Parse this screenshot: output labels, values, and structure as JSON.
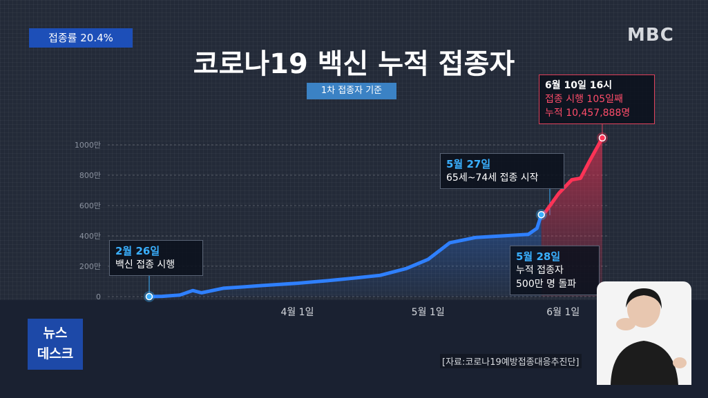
{
  "badge": {
    "label": "접종률 20.4%"
  },
  "broadcaster": {
    "logo_text": "MBC"
  },
  "program": {
    "line1": "뉴스",
    "line2": "데스크"
  },
  "source_text": "[자료:코로나19예방접종대응추진단]",
  "colors": {
    "blue_line": "#2f80ff",
    "red_line": "#ff3356",
    "badge_bg": "#1d4fb8"
  },
  "chart_data": {
    "type": "line",
    "title": "코로나19 백신 누적 접종자",
    "subtitle": "1차 접종자 기준",
    "ylabel": "",
    "xlabel": "",
    "y_unit": "만",
    "ylim": [
      0,
      1000
    ],
    "y_ticks": [
      {
        "value": 0,
        "label": "0"
      },
      {
        "value": 200,
        "label": "200만"
      },
      {
        "value": 400,
        "label": "400만"
      },
      {
        "value": 600,
        "label": "600만"
      },
      {
        "value": 800,
        "label": "800만"
      },
      {
        "value": 1000,
        "label": "1000만"
      }
    ],
    "grid": true,
    "x_ticks": [
      {
        "date": "2021-04-01",
        "label": "4월 1일"
      },
      {
        "date": "2021-05-01",
        "label": "5월 1일"
      },
      {
        "date": "2021-06-01",
        "label": "6월 1일"
      }
    ],
    "series": [
      {
        "color": "#2f80ff",
        "points": [
          [
            "2021-02-26",
            0
          ],
          [
            "2021-03-01",
            2
          ],
          [
            "2021-03-05",
            10
          ],
          [
            "2021-03-08",
            40
          ],
          [
            "2021-03-10",
            25
          ],
          [
            "2021-03-15",
            55
          ],
          [
            "2021-03-20",
            65
          ],
          [
            "2021-03-25",
            75
          ],
          [
            "2021-04-01",
            88
          ],
          [
            "2021-04-08",
            105
          ],
          [
            "2021-04-15",
            125
          ],
          [
            "2021-04-20",
            140
          ],
          [
            "2021-04-26",
            185
          ],
          [
            "2021-05-01",
            245
          ],
          [
            "2021-05-06",
            355
          ],
          [
            "2021-05-12",
            390
          ],
          [
            "2021-05-18",
            400
          ],
          [
            "2021-05-24",
            410
          ],
          [
            "2021-05-26",
            450
          ],
          [
            "2021-05-27",
            540
          ]
        ]
      },
      {
        "color": "#ff3356",
        "points": [
          [
            "2021-05-27",
            540
          ],
          [
            "2021-05-28",
            560
          ],
          [
            "2021-05-31",
            680
          ],
          [
            "2021-06-03",
            770
          ],
          [
            "2021-06-05",
            780
          ],
          [
            "2021-06-07",
            890
          ],
          [
            "2021-06-10",
            1045.8
          ]
        ]
      }
    ],
    "annotations": [
      {
        "id": "start",
        "date_label": "2월 26일",
        "text": "백신 접종 시행"
      },
      {
        "id": "age65",
        "date_label": "5월 27일",
        "text": "65세~74세 접종 시작"
      },
      {
        "id": "fivemil",
        "date_label": "5월 28일",
        "text1": "누적 접종자",
        "text2": "500만 명 돌파"
      },
      {
        "id": "latest",
        "date_label": "6월 10일 16시",
        "text1": "접종 시행 105일째",
        "text2": "누적 10,457,888명"
      }
    ]
  }
}
